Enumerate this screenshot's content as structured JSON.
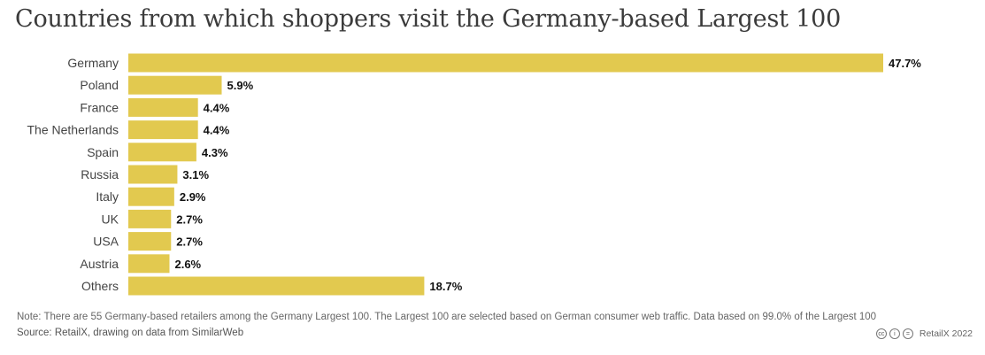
{
  "title": "Countries from which shoppers visit the Germany-based Largest 100",
  "chart_data": {
    "type": "bar",
    "orientation": "horizontal",
    "title": "Countries from which shoppers visit the Germany-based Largest 100",
    "categories": [
      "Germany",
      "Poland",
      "France",
      "The Netherlands",
      "Spain",
      "Russia",
      "Italy",
      "UK",
      "USA",
      "Austria",
      "Others"
    ],
    "values": [
      47.7,
      5.9,
      4.4,
      4.4,
      4.3,
      3.1,
      2.9,
      2.7,
      2.7,
      2.6,
      18.7
    ],
    "value_labels": [
      "47.7%",
      "5.9%",
      "4.4%",
      "4.4%",
      "4.3%",
      "3.1%",
      "2.9%",
      "2.7%",
      "2.7%",
      "2.6%",
      "18.7%"
    ],
    "unit": "%",
    "xlim": [
      0,
      47.7
    ],
    "xlabel": "",
    "ylabel": "",
    "grid": false,
    "bar_color": "#e2c94f"
  },
  "note": "Note: There are 55 Germany-based retailers among the Germany Largest 100. The Largest 100 are selected based on German consumer web traffic. Data based on 99.0% of the Largest 100",
  "source": "Source: RetailX, drawing on data from SimilarWeb",
  "footer": {
    "license_icons": [
      "cc-icon",
      "by-icon",
      "nd-icon"
    ],
    "license_glyphs": [
      "cc",
      "i",
      "="
    ],
    "credit": "RetailX 2022"
  }
}
